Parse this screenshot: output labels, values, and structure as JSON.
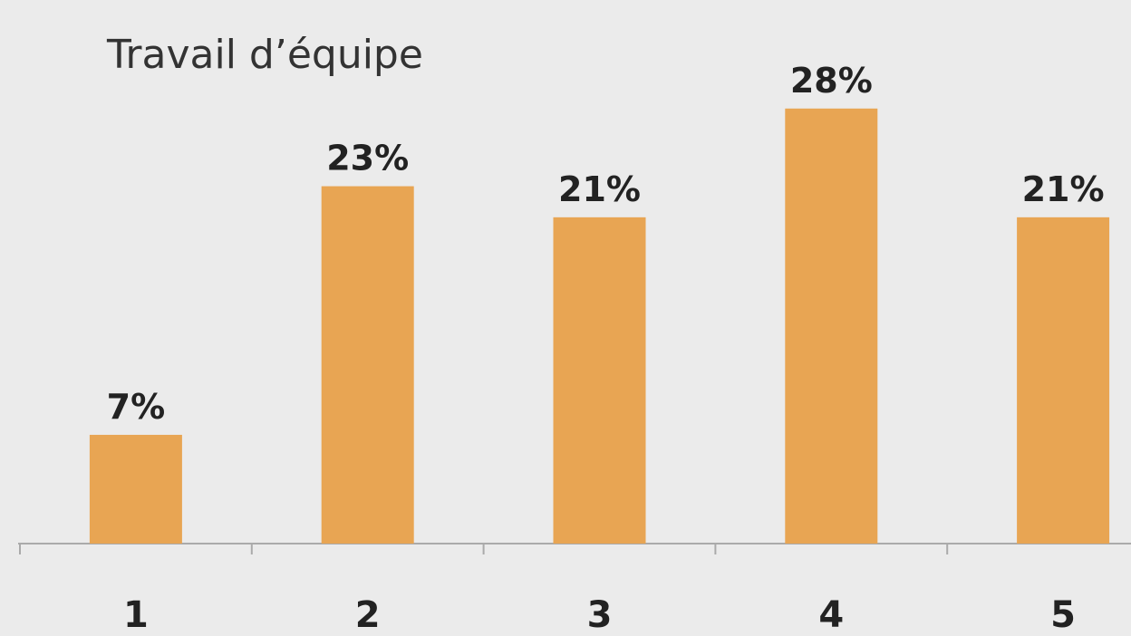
{
  "chart_data": {
    "type": "bar",
    "title": "Travail d’équipe",
    "categories": [
      "1",
      "2",
      "3",
      "4",
      "5"
    ],
    "values": [
      7,
      23,
      21,
      28,
      21
    ],
    "value_labels": [
      "7%",
      "23%",
      "21%",
      "28%",
      "21%"
    ],
    "color": "#e8a553"
  }
}
